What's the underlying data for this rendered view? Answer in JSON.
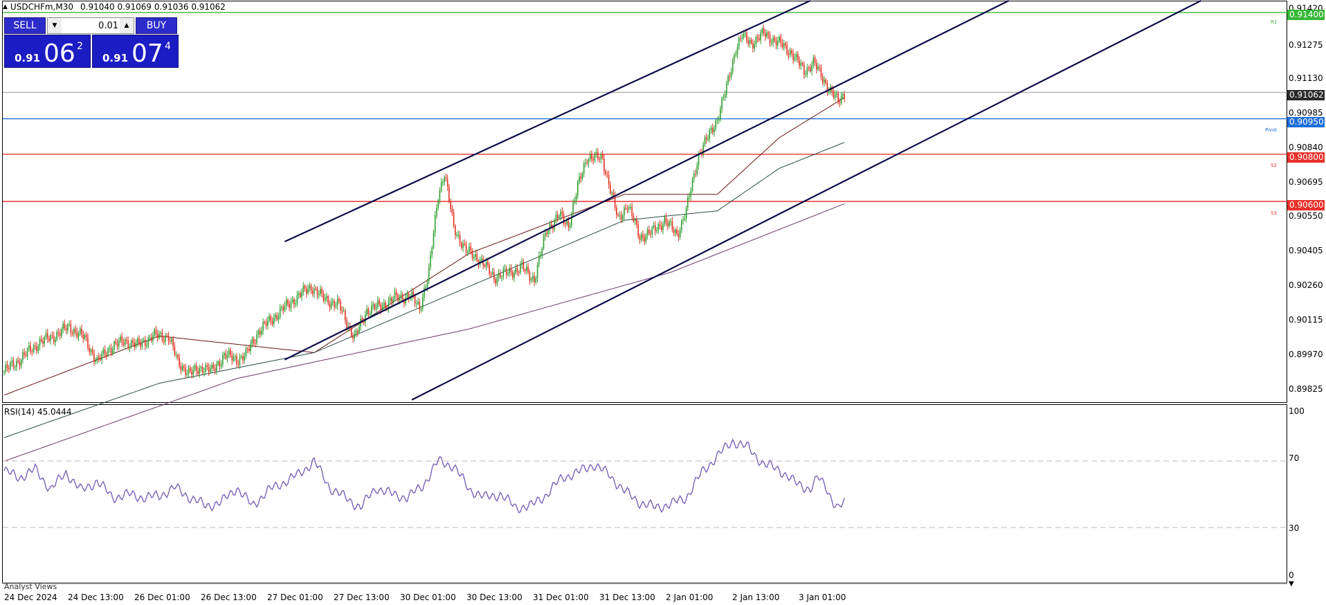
{
  "header": {
    "symbol": "USDCHFm,M30",
    "ohlc": "0.91040 0.91069 0.91036 0.91062"
  },
  "trade_panel": {
    "sell_label": "SELL",
    "buy_label": "BUY",
    "lot_value": "0.01",
    "bid": {
      "prefix": "0.91",
      "big": "06",
      "sup": "2"
    },
    "ask": {
      "prefix": "0.91",
      "big": "07",
      "sup": "4"
    }
  },
  "price_axis": {
    "labels": [
      "0.91420",
      "0.91275",
      "0.91130",
      "0.90985",
      "0.90840",
      "0.90695",
      "0.90550",
      "0.90405",
      "0.90260",
      "0.90115",
      "0.89970",
      "0.89825"
    ],
    "current_price": "0.91062"
  },
  "levels": [
    {
      "name": "R1",
      "price": "0.91400",
      "color": "#36b836"
    },
    {
      "name": "Pivot",
      "price": "0.90950",
      "color": "#1e6fd9"
    },
    {
      "name": "S2",
      "price": "0.90800",
      "color": "#e8302a"
    },
    {
      "name": "S3",
      "price": "0.90600",
      "color": "#e8302a"
    }
  ],
  "time_axis": [
    "24 Dec 2024",
    "24 Dec 13:00",
    "26 Dec 01:00",
    "26 Dec 13:00",
    "27 Dec 01:00",
    "27 Dec 13:00",
    "30 Dec 01:00",
    "30 Dec 13:00",
    "31 Dec 01:00",
    "31 Dec 13:00",
    "2 Jan 01:00",
    "2 Jan 13:00",
    "3 Jan 01:00"
  ],
  "rsi": {
    "label": "RSI(14) 45.0444",
    "axis": [
      "100",
      "70",
      "30",
      "0"
    ]
  },
  "footer": {
    "analyst_views": "Analyst Views"
  },
  "colors": {
    "bull": "#2e9e2e",
    "bear": "#e03020",
    "channel": "#0b0b4a",
    "ma_fast": "#6b1414",
    "ma_mid": "#2a4a4a",
    "ma_slow": "#6a3a6a",
    "rsi_line": "#7a62b8"
  },
  "chart_data": {
    "type": "candlestick",
    "symbol": "USDCHFm",
    "timeframe": "M30",
    "y_range": [
      0.8975,
      0.9145
    ],
    "close_path": [
      [
        0,
        0.8988
      ],
      [
        10,
        0.8993
      ],
      [
        22,
        0.9
      ],
      [
        32,
        0.9003
      ],
      [
        42,
        0.9007
      ],
      [
        52,
        0.9002
      ],
      [
        60,
        0.8992
      ],
      [
        68,
        0.8998
      ],
      [
        78,
        0.9001
      ],
      [
        86,
        0.8999
      ],
      [
        96,
        0.9003
      ],
      [
        106,
        0.9003
      ],
      [
        112,
        0.8992
      ],
      [
        120,
        0.8987
      ],
      [
        128,
        0.899
      ],
      [
        134,
        0.8988
      ],
      [
        142,
        0.8995
      ],
      [
        150,
        0.8993
      ],
      [
        156,
        0.8995
      ],
      [
        164,
        0.9005
      ],
      [
        174,
        0.9011
      ],
      [
        186,
        0.9018
      ],
      [
        198,
        0.9024
      ],
      [
        206,
        0.9019
      ],
      [
        216,
        0.9016
      ],
      [
        226,
        0.9002
      ],
      [
        234,
        0.9014
      ],
      [
        244,
        0.9016
      ],
      [
        252,
        0.9019
      ],
      [
        262,
        0.902
      ],
      [
        268,
        0.9015
      ],
      [
        274,
        0.903
      ],
      [
        280,
        0.9063
      ],
      [
        284,
        0.9072
      ],
      [
        290,
        0.9049
      ],
      [
        298,
        0.9039
      ],
      [
        306,
        0.9036
      ],
      [
        316,
        0.9028
      ],
      [
        326,
        0.903
      ],
      [
        334,
        0.9032
      ],
      [
        342,
        0.9027
      ],
      [
        350,
        0.9048
      ],
      [
        358,
        0.9054
      ],
      [
        364,
        0.905
      ],
      [
        370,
        0.9066
      ],
      [
        376,
        0.9079
      ],
      [
        386,
        0.9078
      ],
      [
        390,
        0.9068
      ],
      [
        396,
        0.9052
      ],
      [
        402,
        0.9059
      ],
      [
        410,
        0.9045
      ],
      [
        418,
        0.9047
      ],
      [
        426,
        0.9052
      ],
      [
        434,
        0.9046
      ],
      [
        440,
        0.9056
      ],
      [
        448,
        0.908
      ],
      [
        454,
        0.9087
      ],
      [
        460,
        0.9095
      ],
      [
        466,
        0.9108
      ],
      [
        472,
        0.9125
      ],
      [
        476,
        0.913
      ],
      [
        482,
        0.9127
      ],
      [
        490,
        0.9131
      ],
      [
        500,
        0.9127
      ],
      [
        508,
        0.9123
      ],
      [
        516,
        0.9115
      ],
      [
        522,
        0.9119
      ],
      [
        528,
        0.9112
      ],
      [
        534,
        0.9106
      ],
      [
        538,
        0.9102
      ],
      [
        542,
        0.9106
      ]
    ],
    "ma_fast": [
      [
        0,
        0.8978
      ],
      [
        100,
        0.9003
      ],
      [
        200,
        0.8996
      ],
      [
        300,
        0.9038
      ],
      [
        400,
        0.9063
      ],
      [
        460,
        0.9063
      ],
      [
        500,
        0.9087
      ],
      [
        542,
        0.9104
      ]
    ],
    "ma_mid": [
      [
        0,
        0.896
      ],
      [
        100,
        0.8983
      ],
      [
        200,
        0.8996
      ],
      [
        300,
        0.9024
      ],
      [
        400,
        0.9052
      ],
      [
        460,
        0.9056
      ],
      [
        500,
        0.9074
      ],
      [
        542,
        0.9085
      ]
    ],
    "ma_slow": [
      [
        0,
        0.895
      ],
      [
        150,
        0.8985
      ],
      [
        300,
        0.9006
      ],
      [
        430,
        0.903
      ],
      [
        542,
        0.9059
      ]
    ],
    "channel_lines": [
      [
        [
          181,
          0.9043
        ],
        [
          520,
          0.9145
        ]
      ],
      [
        [
          181,
          0.8993
        ],
        [
          648,
          0.9145
        ]
      ],
      [
        [
          263,
          0.8976
        ],
        [
          772,
          0.9145
        ]
      ]
    ],
    "rsi_path": [
      [
        0,
        64
      ],
      [
        10,
        60
      ],
      [
        20,
        65
      ],
      [
        30,
        53
      ],
      [
        40,
        63
      ],
      [
        50,
        52
      ],
      [
        60,
        58
      ],
      [
        70,
        48
      ],
      [
        80,
        50
      ],
      [
        90,
        48
      ],
      [
        100,
        49
      ],
      [
        110,
        54
      ],
      [
        120,
        48
      ],
      [
        130,
        43
      ],
      [
        140,
        45
      ],
      [
        150,
        54
      ],
      [
        160,
        43
      ],
      [
        170,
        52
      ],
      [
        180,
        57
      ],
      [
        190,
        62
      ],
      [
        200,
        70
      ],
      [
        210,
        54
      ],
      [
        220,
        48
      ],
      [
        230,
        42
      ],
      [
        240,
        54
      ],
      [
        250,
        50
      ],
      [
        260,
        48
      ],
      [
        270,
        55
      ],
      [
        280,
        70
      ],
      [
        290,
        67
      ],
      [
        300,
        53
      ],
      [
        310,
        48
      ],
      [
        320,
        50
      ],
      [
        330,
        42
      ],
      [
        340,
        43
      ],
      [
        350,
        50
      ],
      [
        360,
        60
      ],
      [
        370,
        63
      ],
      [
        380,
        68
      ],
      [
        390,
        62
      ],
      [
        400,
        52
      ],
      [
        410,
        45
      ],
      [
        420,
        42
      ],
      [
        430,
        44
      ],
      [
        440,
        48
      ],
      [
        450,
        63
      ],
      [
        460,
        73
      ],
      [
        470,
        82
      ],
      [
        480,
        78
      ],
      [
        490,
        68
      ],
      [
        500,
        65
      ],
      [
        510,
        57
      ],
      [
        520,
        53
      ],
      [
        525,
        60
      ],
      [
        530,
        55
      ],
      [
        535,
        45
      ],
      [
        538,
        41
      ],
      [
        542,
        45
      ]
    ],
    "rsi_levels": [
      70,
      30
    ],
    "rsi_value": 45.0444,
    "grid": false
  }
}
